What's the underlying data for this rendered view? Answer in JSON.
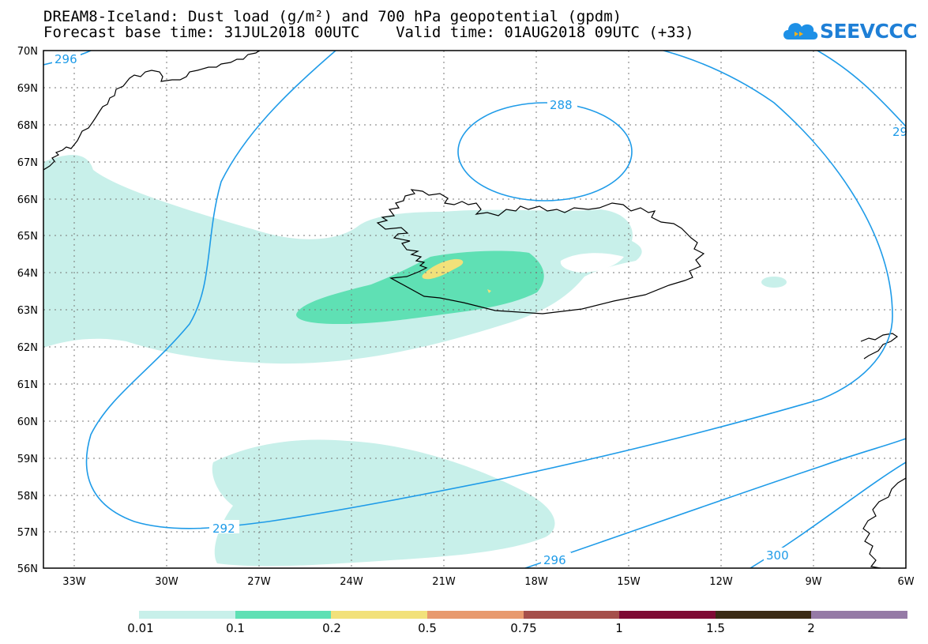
{
  "header": {
    "title_line1": "DREAM8-Iceland: Dust load (g/m²) and 700 hPa geopotential (gpdm)",
    "title_line2": "Forecast base time: 31JUL2018 00UTC    Valid time: 01AUG2018 09UTC (+33)"
  },
  "logo": {
    "text": "SEEVCCC",
    "color": "#1e90e6"
  },
  "map": {
    "lat_range": [
      56,
      70
    ],
    "lon_range": [
      -34.25,
      -6
    ],
    "lat_labels": [
      "70N",
      "69N",
      "68N",
      "67N",
      "66N",
      "65N",
      "64N",
      "63N",
      "62N",
      "61N",
      "60N",
      "59N",
      "58N",
      "57N",
      "56N"
    ],
    "lon_labels": [
      "33W",
      "30W",
      "27W",
      "24W",
      "21W",
      "18W",
      "15W",
      "12W",
      "9W",
      "6W"
    ],
    "contour_labels": [
      "296",
      "288",
      "292",
      "296",
      "300",
      "29"
    ],
    "contour_color": "#1e9be8"
  },
  "colorbar": {
    "labels": [
      "0.01",
      "0.1",
      "0.2",
      "0.5",
      "0.75",
      "1",
      "1.5",
      "2"
    ],
    "colors": [
      "#c8f0ea",
      "#5fe0b4",
      "#f2e17a",
      "#e89a6e",
      "#a54f4a",
      "#7e0a34",
      "#3a2a14",
      "#957aa6"
    ]
  }
}
